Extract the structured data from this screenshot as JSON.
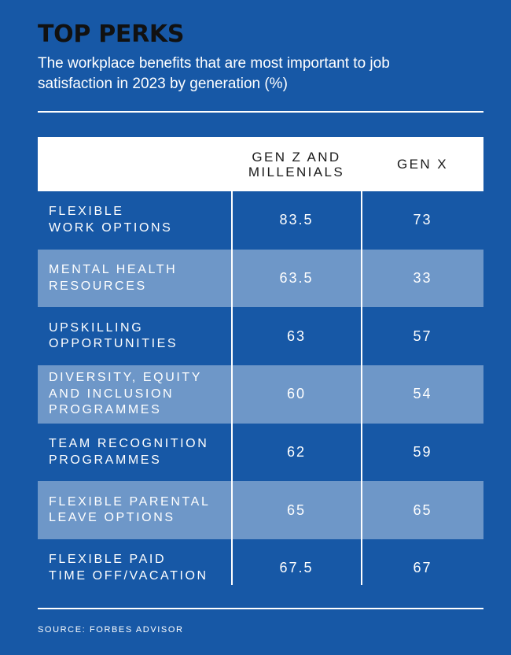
{
  "title": "TOP PERKS",
  "subtitle": "The workplace benefits that are most important to job satisfaction in 2023 by generation (%)",
  "source": "SOURCE: FORBES ADVISOR",
  "colors": {
    "background": "#1758a6",
    "shaded_row": "#6e97c8",
    "header_bg": "#ffffff",
    "title": "#111111"
  },
  "chart_data": {
    "type": "table",
    "title": "TOP PERKS",
    "subtitle": "The workplace benefits that are most important to job satisfaction in 2023 by generation (%)",
    "columns": [
      {
        "lines": [
          "GEN Z AND",
          "MILLENIALS"
        ]
      },
      {
        "lines": [
          "GEN X"
        ]
      }
    ],
    "rows": [
      {
        "label_lines": [
          "FLEXIBLE",
          "WORK OPTIONS"
        ],
        "values": [
          "83.5",
          "73"
        ]
      },
      {
        "label_lines": [
          "MENTAL HEALTH",
          "RESOURCES"
        ],
        "values": [
          "63.5",
          "33"
        ]
      },
      {
        "label_lines": [
          "UPSKILLING",
          "OPPORTUNITIES"
        ],
        "values": [
          "63",
          "57"
        ]
      },
      {
        "label_lines": [
          "DIVERSITY, EQUITY",
          "AND INCLUSION",
          "PROGRAMMES"
        ],
        "values": [
          "60",
          "54"
        ]
      },
      {
        "label_lines": [
          "TEAM RECOGNITION",
          "PROGRAMMES"
        ],
        "values": [
          "62",
          "59"
        ]
      },
      {
        "label_lines": [
          "FLEXIBLE PARENTAL",
          "LEAVE OPTIONS"
        ],
        "values": [
          "65",
          "65"
        ]
      },
      {
        "label_lines": [
          "FLEXIBLE PAID",
          "TIME OFF/VACATION"
        ],
        "values": [
          "67.5",
          "67"
        ]
      }
    ],
    "source": "SOURCE: FORBES ADVISOR"
  }
}
